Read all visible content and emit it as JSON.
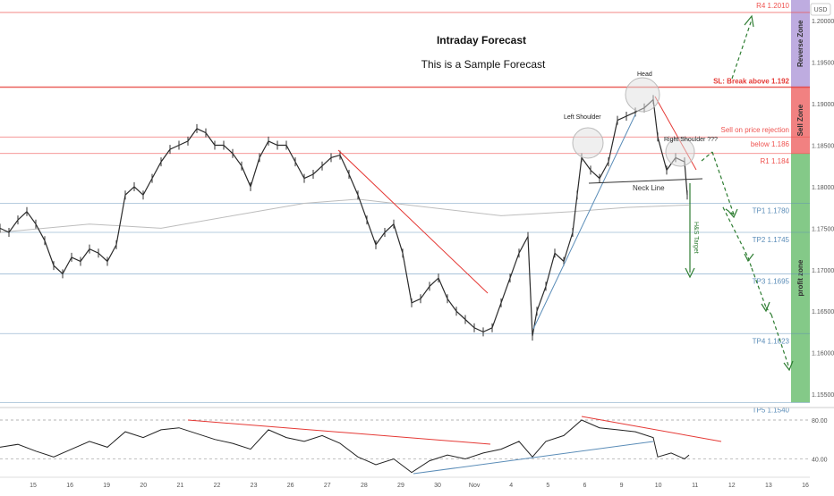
{
  "header": {
    "title": "Intraday Forecast",
    "subtitle": "This is a Sample Forecast",
    "currency_badge": "USD"
  },
  "chart_data": {
    "type": "candlestick",
    "instrument_currency": "USD",
    "ylim": [
      1.1535,
      1.2025
    ],
    "y_ticks": [
      "1.20000",
      "1.19500",
      "1.19000",
      "1.18500",
      "1.18000",
      "1.17500",
      "1.17000",
      "1.16500",
      "1.16000",
      "1.15500"
    ],
    "y_tick_values": [
      1.2,
      1.195,
      1.19,
      1.185,
      1.18,
      1.175,
      1.17,
      1.165,
      1.16,
      1.155
    ],
    "x_ticks": [
      "15",
      "16",
      "19",
      "20",
      "21",
      "22",
      "23",
      "26",
      "27",
      "28",
      "29",
      "30",
      "Nov",
      "4",
      "5",
      "6",
      "9",
      "10",
      "11",
      "12",
      "13",
      "16"
    ],
    "price_path": [
      [
        0,
        1.175
      ],
      [
        10,
        1.1745
      ],
      [
        20,
        1.176
      ],
      [
        30,
        1.177
      ],
      [
        40,
        1.1755
      ],
      [
        50,
        1.1735
      ],
      [
        60,
        1.1705
      ],
      [
        70,
        1.1695
      ],
      [
        80,
        1.1715
      ],
      [
        90,
        1.171
      ],
      [
        100,
        1.1725
      ],
      [
        110,
        1.172
      ],
      [
        120,
        1.171
      ],
      [
        130,
        1.173
      ],
      [
        140,
        1.179
      ],
      [
        150,
        1.18
      ],
      [
        160,
        1.179
      ],
      [
        170,
        1.181
      ],
      [
        180,
        1.183
      ],
      [
        190,
        1.1845
      ],
      [
        200,
        1.185
      ],
      [
        210,
        1.1855
      ],
      [
        220,
        1.187
      ],
      [
        230,
        1.1865
      ],
      [
        240,
        1.185
      ],
      [
        250,
        1.185
      ],
      [
        260,
        1.184
      ],
      [
        270,
        1.1825
      ],
      [
        280,
        1.18
      ],
      [
        290,
        1.1835
      ],
      [
        300,
        1.1855
      ],
      [
        310,
        1.185
      ],
      [
        320,
        1.185
      ],
      [
        330,
        1.183
      ],
      [
        340,
        1.181
      ],
      [
        350,
        1.1815
      ],
      [
        360,
        1.1825
      ],
      [
        370,
        1.1835
      ],
      [
        380,
        1.1838
      ],
      [
        390,
        1.1815
      ],
      [
        400,
        1.179
      ],
      [
        410,
        1.176
      ],
      [
        420,
        1.173
      ],
      [
        430,
        1.1745
      ],
      [
        440,
        1.1755
      ],
      [
        450,
        1.172
      ],
      [
        460,
        1.166
      ],
      [
        470,
        1.1665
      ],
      [
        480,
        1.168
      ],
      [
        490,
        1.169
      ],
      [
        500,
        1.1665
      ],
      [
        510,
        1.165
      ],
      [
        520,
        1.164
      ],
      [
        530,
        1.163
      ],
      [
        540,
        1.1625
      ],
      [
        550,
        1.163
      ],
      [
        560,
        1.166
      ],
      [
        570,
        1.169
      ],
      [
        580,
        1.172
      ],
      [
        590,
        1.174
      ],
      [
        595,
        1.162
      ],
      [
        600,
        1.165
      ],
      [
        610,
        1.168
      ],
      [
        620,
        1.172
      ],
      [
        630,
        1.171
      ],
      [
        640,
        1.1745
      ],
      [
        645,
        1.179
      ],
      [
        650,
        1.1835
      ],
      [
        660,
        1.182
      ],
      [
        670,
        1.181
      ],
      [
        680,
        1.183
      ],
      [
        690,
        1.188
      ],
      [
        700,
        1.1885
      ],
      [
        710,
        1.189
      ],
      [
        720,
        1.1895
      ],
      [
        730,
        1.1905
      ],
      [
        735,
        1.186
      ],
      [
        745,
        1.182
      ],
      [
        755,
        1.1835
      ],
      [
        765,
        1.183
      ],
      [
        768,
        1.179
      ]
    ],
    "moving_average_path": [
      [
        0,
        1.1745
      ],
      [
        100,
        1.1755
      ],
      [
        180,
        1.175
      ],
      [
        260,
        1.1765
      ],
      [
        340,
        1.178
      ],
      [
        400,
        1.1785
      ],
      [
        480,
        1.1775
      ],
      [
        560,
        1.1765
      ],
      [
        640,
        1.177
      ],
      [
        700,
        1.1775
      ],
      [
        770,
        1.1778
      ]
    ],
    "levels": [
      {
        "name": "R4",
        "label": "R4 1.2010",
        "value": 1.201,
        "color": "#ef5350"
      },
      {
        "name": "SL",
        "label": "SL: Break above 1.192",
        "value": 1.192,
        "color": "#e53935"
      },
      {
        "name": "Sell",
        "label": "Sell on price rejection",
        "label2": "below   1.186",
        "value": 1.186,
        "color": "#ef5350"
      },
      {
        "name": "R1",
        "label": "R1 1.184",
        "value": 1.184,
        "color": "#ef5350"
      },
      {
        "name": "TP1",
        "label": "TP1 1.1780",
        "value": 1.178,
        "color": "#5b8db8"
      },
      {
        "name": "TP2",
        "label": "TP2 1.1745",
        "value": 1.1745,
        "color": "#5b8db8"
      },
      {
        "name": "TP3",
        "label": "TP3 1.1695",
        "value": 1.1695,
        "color": "#5b8db8"
      },
      {
        "name": "TP4",
        "label": "TP4 1.1623",
        "value": 1.1623,
        "color": "#5b8db8"
      },
      {
        "name": "TP5",
        "label": "TP5 1.1540",
        "value": 1.154,
        "color": "#5b8db8"
      }
    ],
    "zones": [
      {
        "name": "Reverse Zone",
        "from": 1.192,
        "to": 1.2025,
        "color": "#b39ddb"
      },
      {
        "name": "Sell Zone",
        "from": 1.184,
        "to": 1.192,
        "color": "#ef6b6b"
      },
      {
        "name": "profit zone",
        "from": 1.154,
        "to": 1.184,
        "color": "#6fbf73"
      }
    ],
    "annotations": {
      "left_shoulder": "Left Shoulder",
      "head": "Head",
      "right_shoulder": "Right Shoulder ???",
      "neck_line": "Neck Line",
      "hs_target": "H&S Target"
    },
    "rsi": {
      "y_ticks": [
        "80.00",
        "40.00"
      ],
      "y_tick_values": [
        80,
        40
      ],
      "ylim": [
        22,
        92
      ],
      "path": [
        [
          0,
          52
        ],
        [
          20,
          55
        ],
        [
          40,
          48
        ],
        [
          60,
          42
        ],
        [
          80,
          50
        ],
        [
          100,
          58
        ],
        [
          120,
          52
        ],
        [
          140,
          68
        ],
        [
          160,
          62
        ],
        [
          180,
          70
        ],
        [
          200,
          72
        ],
        [
          220,
          66
        ],
        [
          240,
          60
        ],
        [
          260,
          56
        ],
        [
          280,
          50
        ],
        [
          300,
          70
        ],
        [
          320,
          62
        ],
        [
          340,
          58
        ],
        [
          360,
          64
        ],
        [
          380,
          56
        ],
        [
          400,
          42
        ],
        [
          410,
          38
        ],
        [
          420,
          34
        ],
        [
          440,
          40
        ],
        [
          460,
          26
        ],
        [
          480,
          38
        ],
        [
          500,
          44
        ],
        [
          520,
          40
        ],
        [
          540,
          46
        ],
        [
          560,
          50
        ],
        [
          580,
          58
        ],
        [
          595,
          42
        ],
        [
          610,
          58
        ],
        [
          630,
          64
        ],
        [
          650,
          80
        ],
        [
          670,
          72
        ],
        [
          690,
          70
        ],
        [
          710,
          68
        ],
        [
          730,
          62
        ],
        [
          735,
          42
        ],
        [
          750,
          46
        ],
        [
          765,
          40
        ],
        [
          770,
          44
        ]
      ]
    }
  }
}
